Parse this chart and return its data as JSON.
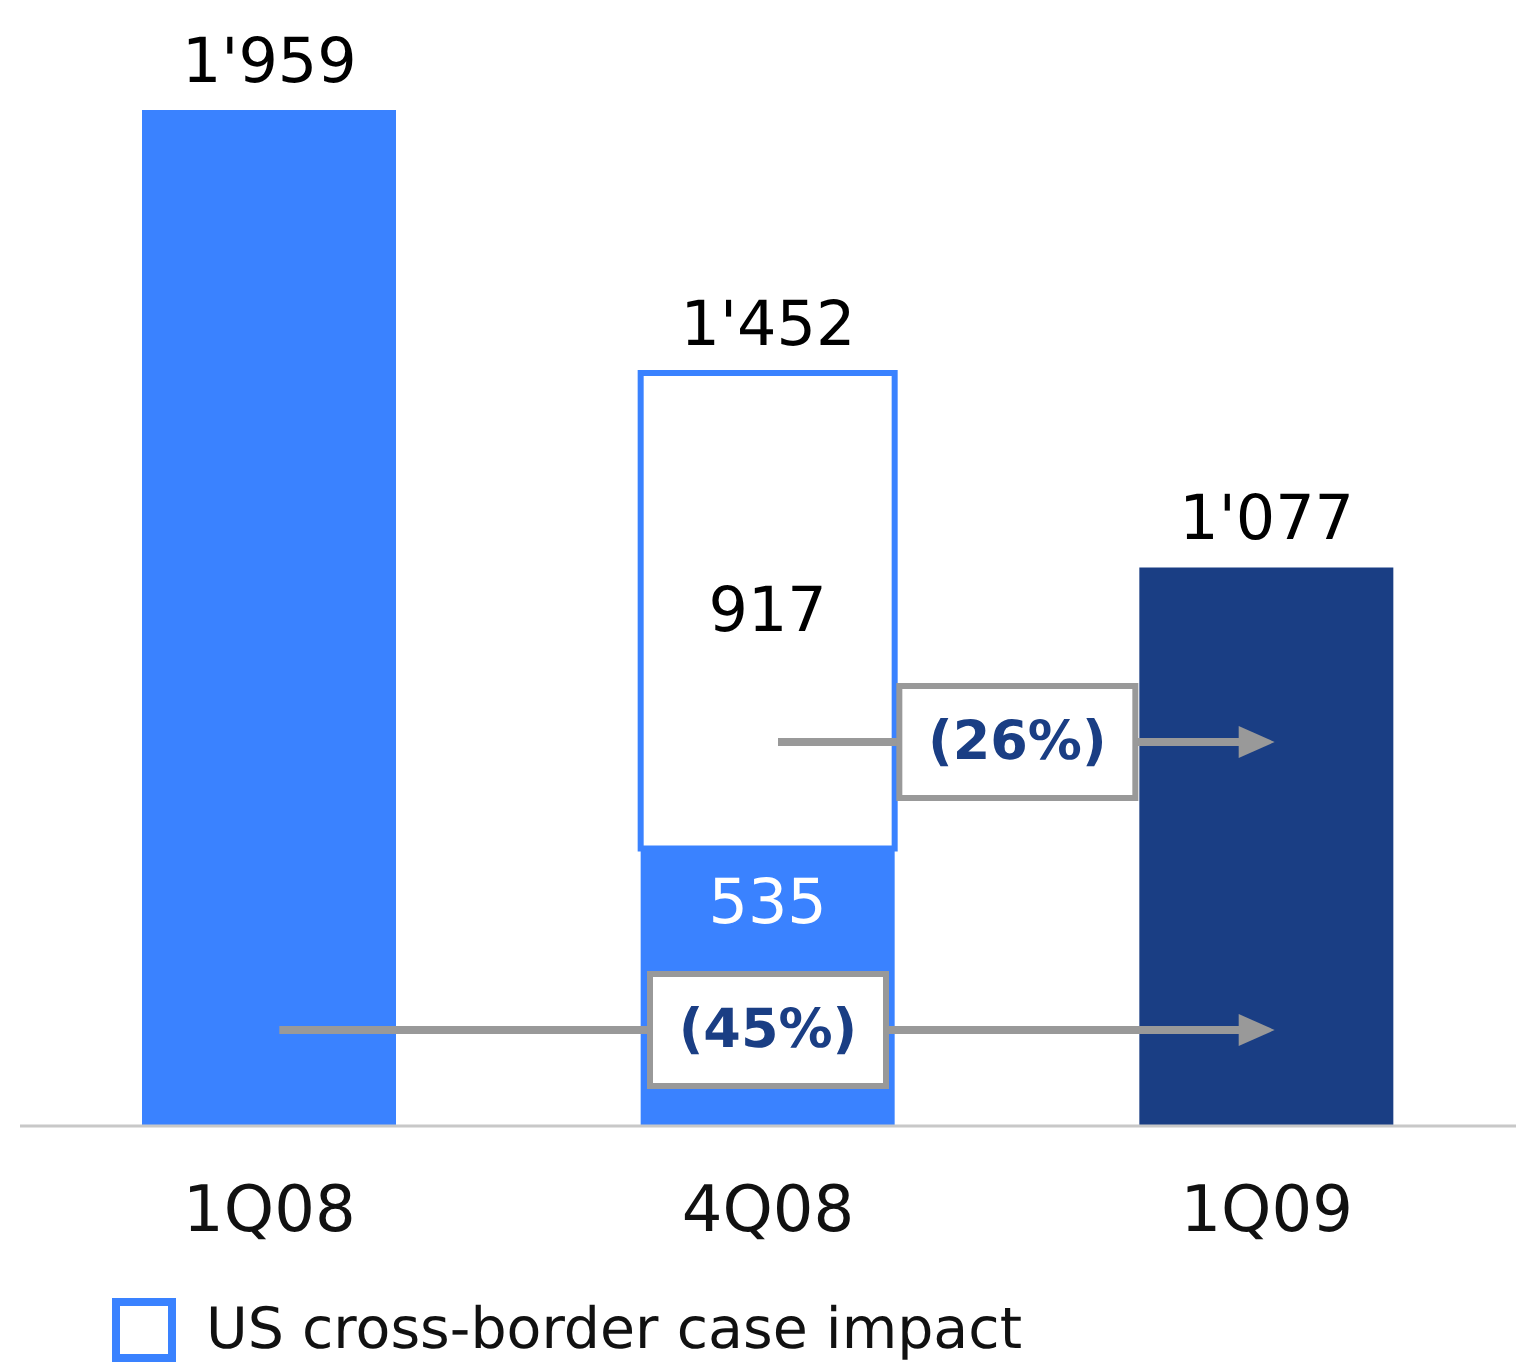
{
  "chart_data": {
    "type": "bar",
    "stacked": true,
    "categories": [
      "1Q08",
      "4Q08",
      "1Q09"
    ],
    "series": [
      {
        "colors": [
          "#3a82ff",
          "#3a82ff",
          "#1a3e84"
        ],
        "values": [
          1959,
          535,
          1077
        ],
        "value_labels": [
          null,
          "535",
          null
        ]
      },
      {
        "name": "US cross-border case impact",
        "color": "#ffffff",
        "values": [
          null,
          917,
          null
        ],
        "value_labels": [
          null,
          "917",
          null
        ]
      }
    ],
    "totals": [
      "1'959",
      "1'452",
      "1'077"
    ],
    "annotations": [
      "(45%)",
      "(26%)"
    ],
    "legend": "bottom left"
  }
}
